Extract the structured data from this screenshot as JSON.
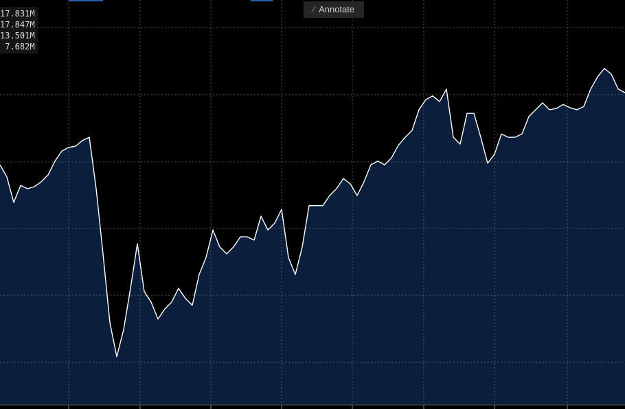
{
  "chart_data": {
    "type": "area",
    "values": [
      59.3,
      56.3,
      50,
      54.2,
      53.4,
      53.9,
      55.1,
      56.8,
      60.2,
      62.7,
      63.6,
      63.9,
      65.3,
      66.1,
      53.4,
      37.3,
      20.3,
      11.9,
      18.6,
      28.8,
      39.8,
      28,
      25.4,
      21.2,
      23.7,
      25.4,
      28.8,
      26.3,
      24.6,
      32.2,
      36.4,
      43.2,
      39,
      37.3,
      39,
      41.5,
      41.5,
      40.7,
      46.6,
      43.2,
      44.9,
      48.3,
      36.4,
      32.2,
      39,
      49.2,
      49.2,
      49.2,
      51.7,
      53.4,
      55.9,
      54.6,
      51.7,
      55.1,
      59.3,
      60.2,
      59.3,
      61,
      64.1,
      66.1,
      67.8,
      72.9,
      75.4,
      76.3,
      74.9,
      78,
      66.1,
      64.4,
      72,
      72,
      66.1,
      59.7,
      61.9,
      66.9,
      66.1,
      66.1,
      66.9,
      71.2,
      72.9,
      74.6,
      72.9,
      73.2,
      74.2,
      73.4,
      72.9,
      73.7,
      78,
      81,
      83.1,
      81.7,
      78,
      77.1
    ],
    "color": "#ffffff",
    "fill": "#0b1f3d",
    "ylim": [
      0,
      100
    ],
    "yticks": [
      10.5,
      27.1,
      43.6,
      60,
      76.6,
      93.2
    ],
    "xlim": [
      0,
      91
    ],
    "xticks": [
      10,
      20.4,
      30.7,
      41,
      51.3,
      61.7,
      72,
      82.6
    ],
    "grid": true
  },
  "legend": [
    "17.831M",
    "17.847M",
    "13.501M",
    "7.682M"
  ],
  "toolbar": {
    "annotate": "Annotate"
  }
}
